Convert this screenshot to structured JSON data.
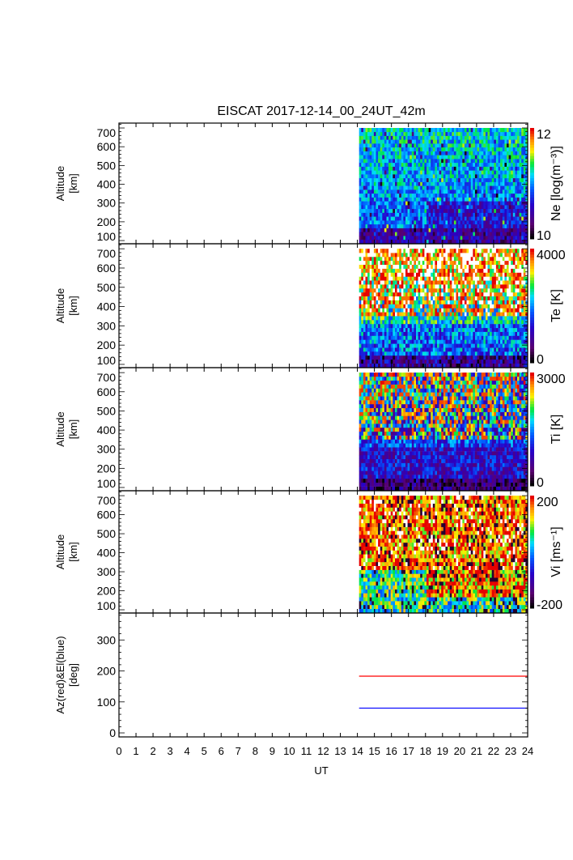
{
  "title": "EISCAT 2017-12-14_00_24UT_42m",
  "chart_data": [
    {
      "type": "heatmap",
      "ylabel": [
        "Altitude",
        "[km]"
      ],
      "yticks": [
        "100",
        "200",
        "300",
        "400",
        "500",
        "600",
        "700"
      ],
      "ylim": [
        83,
        726
      ],
      "xlim": [
        0,
        24
      ],
      "data_time_range": [
        14.1,
        24
      ],
      "data_altitude_range": [
        85,
        700
      ],
      "colorbar": {
        "label": "Ne [log(m⁻³)]",
        "range": [
          10,
          12
        ],
        "ticks": [
          "10",
          "12"
        ]
      }
    },
    {
      "type": "heatmap",
      "ylabel": [
        "Altitude",
        "[km]"
      ],
      "yticks": [
        "100",
        "200",
        "300",
        "400",
        "500",
        "600",
        "700"
      ],
      "ylim": [
        83,
        726
      ],
      "xlim": [
        0,
        24
      ],
      "data_time_range": [
        14.1,
        24
      ],
      "data_altitude_range": [
        85,
        700
      ],
      "colorbar": {
        "label": "Te [K]",
        "range": [
          0,
          4000
        ],
        "ticks": [
          "0",
          "4000"
        ]
      }
    },
    {
      "type": "heatmap",
      "ylabel": [
        "Altitude",
        "[km]"
      ],
      "yticks": [
        "100",
        "200",
        "300",
        "400",
        "500",
        "600",
        "700"
      ],
      "ylim": [
        83,
        726
      ],
      "xlim": [
        0,
        24
      ],
      "data_time_range": [
        14.1,
        24
      ],
      "data_altitude_range": [
        85,
        700
      ],
      "colorbar": {
        "label": "Ti [K]",
        "range": [
          0,
          3000
        ],
        "ticks": [
          "0",
          "3000"
        ]
      }
    },
    {
      "type": "heatmap",
      "ylabel": [
        "Altitude",
        "[km]"
      ],
      "yticks": [
        "100",
        "200",
        "300",
        "400",
        "500",
        "600",
        "700"
      ],
      "ylim": [
        83,
        726
      ],
      "xlim": [
        0,
        24
      ],
      "data_time_range": [
        14.1,
        24
      ],
      "data_altitude_range": [
        85,
        700
      ],
      "colorbar": {
        "label": "Vi [ms⁻¹]",
        "range": [
          -200,
          200
        ],
        "ticks": [
          "-200",
          "200"
        ]
      }
    },
    {
      "type": "line",
      "ylabel": [
        "Az(red)&El(blue)",
        "[deg]"
      ],
      "yticks": [
        "0",
        "100",
        "200",
        "300"
      ],
      "ylim": [
        -13,
        387
      ],
      "xlim": [
        0,
        24
      ],
      "xlabel": "UT",
      "xticks": [
        "0",
        "1",
        "2",
        "3",
        "4",
        "5",
        "6",
        "7",
        "8",
        "9",
        "10",
        "11",
        "12",
        "13",
        "14",
        "15",
        "16",
        "17",
        "18",
        "19",
        "20",
        "21",
        "22",
        "23",
        "24"
      ],
      "series": [
        {
          "name": "Az",
          "color": "#ff0000",
          "x": [
            14.1,
            24
          ],
          "y": [
            183,
            183
          ]
        },
        {
          "name": "El",
          "color": "#0000ff",
          "x": [
            14.1,
            24
          ],
          "y": [
            80,
            80
          ]
        }
      ]
    }
  ]
}
